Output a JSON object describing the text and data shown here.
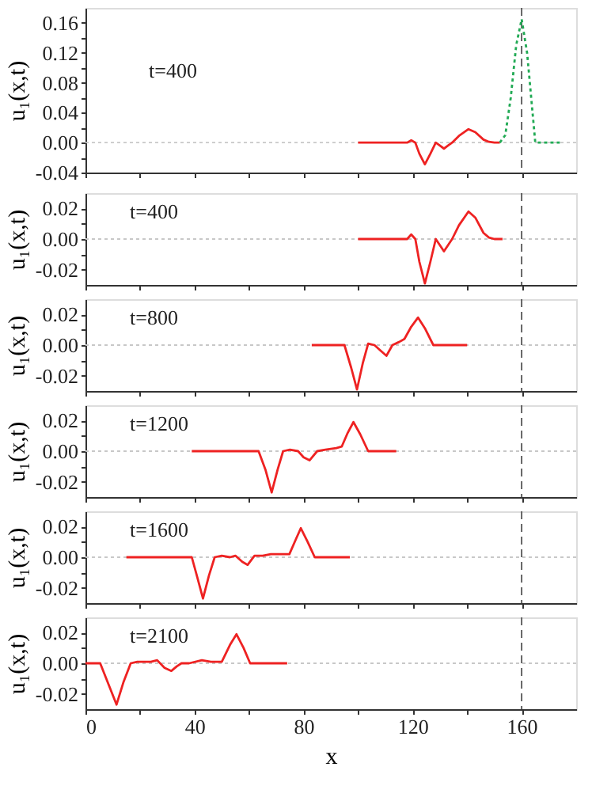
{
  "chart_data": [
    {
      "type": "line",
      "ylabel": "u₁(x,t)",
      "annotations": [
        "t=400"
      ],
      "tick_labels": "y",
      "xlim": [
        0,
        180
      ],
      "ylim": [
        -0.04,
        0.18
      ],
      "xticks": [
        {
          "value": 0,
          "label": null
        },
        {
          "value": 20,
          "label": null
        },
        {
          "value": 40,
          "label": null
        },
        {
          "value": 60,
          "label": null
        },
        {
          "value": 80,
          "label": null
        },
        {
          "value": 100,
          "label": null
        },
        {
          "value": 120,
          "label": null
        },
        {
          "value": 140,
          "label": null
        },
        {
          "value": 160,
          "label": null
        }
      ],
      "yticks": [
        {
          "value": -0.04,
          "label": "-0.04"
        },
        {
          "value": -0.02,
          "label": null
        },
        {
          "value": 0,
          "label": "0.00"
        },
        {
          "value": 0.02,
          "label": null
        },
        {
          "value": 0.04,
          "label": "0.04"
        },
        {
          "value": 0.06,
          "label": null
        },
        {
          "value": 0.08,
          "label": "0.08"
        },
        {
          "value": 0.1,
          "label": null
        },
        {
          "value": 0.12,
          "label": "0.12"
        },
        {
          "value": 0.14,
          "label": null
        },
        {
          "value": 0.16,
          "label": "0.16"
        }
      ],
      "ref_lines": [
        {
          "axis": "y",
          "value": 0,
          "color": "#c8c8c8",
          "line_style": "dotted"
        },
        {
          "axis": "x",
          "value": 160,
          "color": "#555555",
          "line_style": "dashed"
        }
      ],
      "series": [
        {
          "color": "#ee2222",
          "line_style": "solid",
          "x": [
            100,
            118,
            119.5,
            121,
            122.5,
            124.5,
            126.5,
            128.5,
            130,
            131.5,
            133,
            134.5,
            137,
            140.5,
            143,
            146,
            148,
            150,
            152
          ],
          "values": [
            0,
            0,
            0.003,
            0,
            -0.015,
            -0.029,
            -0.015,
            0,
            -0.004,
            -0.008,
            -0.004,
            0,
            0.009,
            0.018,
            0.014,
            0.004,
            0.001,
            0,
            0
          ]
        },
        {
          "color": "#22aa55",
          "line_style": "dotted",
          "x": [
            152,
            154,
            156,
            158,
            160,
            162,
            164,
            165,
            170,
            174
          ],
          "values": [
            0,
            0.01,
            0.06,
            0.13,
            0.165,
            0.12,
            0.04,
            0,
            0,
            0
          ]
        }
      ]
    },
    {
      "type": "line",
      "ylabel": "u₁(x,t)",
      "annotations": [
        "t=400"
      ],
      "tick_labels": "y",
      "xlim": [
        0,
        180
      ],
      "ylim": [
        -0.03,
        0.03
      ],
      "xticks": [
        {
          "value": 0,
          "label": null
        },
        {
          "value": 20,
          "label": null
        },
        {
          "value": 40,
          "label": null
        },
        {
          "value": 60,
          "label": null
        },
        {
          "value": 80,
          "label": null
        },
        {
          "value": 100,
          "label": null
        },
        {
          "value": 120,
          "label": null
        },
        {
          "value": 140,
          "label": null
        },
        {
          "value": 160,
          "label": null
        }
      ],
      "yticks": [
        {
          "value": -0.02,
          "label": "-0.02"
        },
        {
          "value": -0.01,
          "label": null
        },
        {
          "value": 0,
          "label": "0.00"
        },
        {
          "value": 0.01,
          "label": null
        },
        {
          "value": 0.02,
          "label": "0.02"
        }
      ],
      "ref_lines": [
        {
          "axis": "y",
          "value": 0,
          "color": "#c8c8c8",
          "line_style": "dotted"
        },
        {
          "axis": "x",
          "value": 160,
          "color": "#555555",
          "line_style": "dashed"
        }
      ],
      "series": [
        {
          "color": "#ee2222",
          "x": [
            100,
            118,
            119.5,
            121,
            122.5,
            124.5,
            126.5,
            128.5,
            130,
            131.5,
            133,
            134.5,
            137,
            140.5,
            143,
            146,
            148,
            150,
            153
          ],
          "values": [
            0,
            0,
            0.003,
            0,
            -0.015,
            -0.029,
            -0.015,
            0,
            -0.004,
            -0.008,
            -0.004,
            0,
            0.009,
            0.018,
            0.014,
            0.004,
            0.001,
            0,
            0
          ]
        }
      ]
    },
    {
      "type": "line",
      "ylabel": "u₁(x,t)",
      "annotations": [
        "t=800"
      ],
      "tick_labels": "y",
      "xlim": [
        0,
        180
      ],
      "ylim": [
        -0.03,
        0.03
      ],
      "xticks": [
        {
          "value": 0,
          "label": null
        },
        {
          "value": 20,
          "label": null
        },
        {
          "value": 40,
          "label": null
        },
        {
          "value": 60,
          "label": null
        },
        {
          "value": 80,
          "label": null
        },
        {
          "value": 100,
          "label": null
        },
        {
          "value": 120,
          "label": null
        },
        {
          "value": 140,
          "label": null
        },
        {
          "value": 160,
          "label": null
        }
      ],
      "yticks": [
        {
          "value": -0.02,
          "label": "-0.02"
        },
        {
          "value": -0.01,
          "label": null
        },
        {
          "value": 0,
          "label": "0.00"
        },
        {
          "value": 0.01,
          "label": null
        },
        {
          "value": 0.02,
          "label": "0.02"
        }
      ],
      "ref_lines": [
        {
          "axis": "y",
          "value": 0,
          "color": "#c8c8c8",
          "line_style": "dotted"
        },
        {
          "axis": "x",
          "value": 160,
          "color": "#555555",
          "line_style": "dashed"
        }
      ],
      "series": [
        {
          "color": "#ee2222",
          "x": [
            83,
            95,
            97.5,
            99.6,
            101.7,
            103.7,
            106,
            108.5,
            110.4,
            112.6,
            115,
            117,
            119.5,
            122,
            124.5,
            127.6,
            140
          ],
          "values": [
            0,
            0,
            -0.015,
            -0.029,
            -0.012,
            0.001,
            0,
            -0.004,
            -0.007,
            0,
            0.002,
            0.004,
            0.012,
            0.018,
            0.011,
            0,
            0
          ]
        }
      ]
    },
    {
      "type": "line",
      "ylabel": "u₁(x,t)",
      "annotations": [
        "t=1200"
      ],
      "tick_labels": "y",
      "xlim": [
        0,
        180
      ],
      "ylim": [
        -0.03,
        0.03
      ],
      "xticks": [
        {
          "value": 0,
          "label": null
        },
        {
          "value": 20,
          "label": null
        },
        {
          "value": 40,
          "label": null
        },
        {
          "value": 60,
          "label": null
        },
        {
          "value": 80,
          "label": null
        },
        {
          "value": 100,
          "label": null
        },
        {
          "value": 120,
          "label": null
        },
        {
          "value": 140,
          "label": null
        },
        {
          "value": 160,
          "label": null
        }
      ],
      "yticks": [
        {
          "value": -0.02,
          "label": "-0.02"
        },
        {
          "value": -0.01,
          "label": null
        },
        {
          "value": 0,
          "label": "0.00"
        },
        {
          "value": 0.01,
          "label": null
        },
        {
          "value": 0.02,
          "label": "0.02"
        }
      ],
      "ref_lines": [
        {
          "axis": "y",
          "value": 0,
          "color": "#c8c8c8",
          "line_style": "dotted"
        },
        {
          "axis": "x",
          "value": 160,
          "color": "#555555",
          "line_style": "dashed"
        }
      ],
      "series": [
        {
          "color": "#ee2222",
          "x": [
            39,
            63.5,
            66,
            68.3,
            70.5,
            72.5,
            75,
            78,
            80,
            82.2,
            85,
            88,
            92,
            94,
            96.2,
            98.3,
            100.8,
            103.7,
            114
          ],
          "values": [
            0,
            0,
            -0.012,
            -0.027,
            -0.012,
            0,
            0.001,
            0,
            -0.004,
            -0.006,
            0,
            0.001,
            0.002,
            0.003,
            0.012,
            0.019,
            0.011,
            0,
            0
          ]
        }
      ]
    },
    {
      "type": "line",
      "ylabel": "u₁(x,t)",
      "annotations": [
        "t=1600"
      ],
      "tick_labels": "y",
      "xlim": [
        0,
        180
      ],
      "ylim": [
        -0.03,
        0.03
      ],
      "xticks": [
        {
          "value": 0,
          "label": null
        },
        {
          "value": 20,
          "label": null
        },
        {
          "value": 40,
          "label": null
        },
        {
          "value": 60,
          "label": null
        },
        {
          "value": 80,
          "label": null
        },
        {
          "value": 100,
          "label": null
        },
        {
          "value": 120,
          "label": null
        },
        {
          "value": 140,
          "label": null
        },
        {
          "value": 160,
          "label": null
        }
      ],
      "yticks": [
        {
          "value": -0.02,
          "label": "-0.02"
        },
        {
          "value": -0.01,
          "label": null
        },
        {
          "value": 0,
          "label": "0.00"
        },
        {
          "value": 0.01,
          "label": null
        },
        {
          "value": 0.02,
          "label": "0.02"
        }
      ],
      "ref_lines": [
        {
          "axis": "y",
          "value": 0,
          "color": "#c8c8c8",
          "line_style": "dotted"
        },
        {
          "axis": "x",
          "value": 160,
          "color": "#555555",
          "line_style": "dashed"
        }
      ],
      "series": [
        {
          "color": "#ee2222",
          "x": [
            15,
            39,
            41,
            43.1,
            45.3,
            47.4,
            50,
            53,
            55,
            57.5,
            59.5,
            62,
            65,
            68,
            72,
            74.8,
            77,
            79,
            81.5,
            84.1,
            97
          ],
          "values": [
            0,
            0,
            -0.013,
            -0.027,
            -0.012,
            0,
            0.001,
            0,
            0.001,
            -0.003,
            -0.005,
            0.001,
            0.001,
            0.002,
            0.002,
            0.002,
            0.011,
            0.019,
            0.01,
            0,
            0
          ]
        }
      ]
    },
    {
      "type": "line",
      "ylabel": "u₁(x,t)",
      "xlabel": "x",
      "annotations": [
        "t=2100"
      ],
      "xlim": [
        0,
        180
      ],
      "ylim": [
        -0.03,
        0.03
      ],
      "xticks": [
        {
          "value": 0,
          "label": "0"
        },
        {
          "value": 20,
          "label": null
        },
        {
          "value": 40,
          "label": "40"
        },
        {
          "value": 60,
          "label": null
        },
        {
          "value": 80,
          "label": "80"
        },
        {
          "value": 100,
          "label": null
        },
        {
          "value": 120,
          "label": "120"
        },
        {
          "value": 140,
          "label": null
        },
        {
          "value": 160,
          "label": "160"
        }
      ],
      "yticks": [
        {
          "value": -0.02,
          "label": "-0.02"
        },
        {
          "value": -0.01,
          "label": null
        },
        {
          "value": 0,
          "label": "0.00"
        },
        {
          "value": 0.01,
          "label": null
        },
        {
          "value": 0.02,
          "label": "0.02"
        }
      ],
      "ref_lines": [
        {
          "axis": "y",
          "value": 0,
          "color": "#c8c8c8",
          "line_style": "dotted"
        },
        {
          "axis": "x",
          "value": 160,
          "color": "#555555",
          "line_style": "dashed"
        }
      ],
      "series": [
        {
          "color": "#ee2222",
          "x": [
            0,
            5.4,
            8.5,
            11.4,
            14,
            16.6,
            19,
            22,
            24,
            26.3,
            29,
            31.5,
            33.5,
            35.2,
            38,
            42.7,
            46,
            50,
            53,
            55.4,
            58,
            60.4,
            74
          ],
          "values": [
            0,
            0,
            -0.014,
            -0.027,
            -0.012,
            0,
            0.001,
            0.001,
            0.001,
            0.002,
            -0.003,
            -0.005,
            -0.002,
            0,
            0,
            0.002,
            0.001,
            0.001,
            0.012,
            0.019,
            0.01,
            0,
            0
          ]
        }
      ]
    }
  ]
}
